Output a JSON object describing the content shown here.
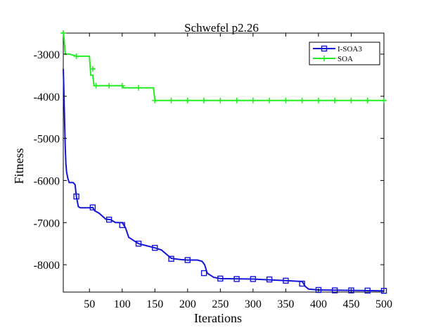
{
  "chart_data": {
    "type": "line",
    "title": "Schwefel p2.26",
    "xlabel": "Iterations",
    "ylabel": "Fitness",
    "xlim": [
      10,
      500
    ],
    "ylim": [
      -8650,
      -2500
    ],
    "xticks": [
      50,
      100,
      150,
      200,
      250,
      300,
      350,
      400,
      450,
      500
    ],
    "yticks": [
      -3000,
      -4000,
      -5000,
      -6000,
      -7000,
      -8000
    ],
    "xtick_labels": [
      "50",
      "100",
      "150",
      "200",
      "250",
      "300",
      "350",
      "400",
      "450",
      "500"
    ],
    "ytick_labels": [
      "-3000",
      "-4000",
      "-5000",
      "-6000",
      "-7000",
      "-8000"
    ],
    "grid": false,
    "legend_position": "top-right",
    "series": [
      {
        "name": "I-SOA3",
        "color": "#1515d8",
        "marker": "square",
        "x": [
          10,
          11,
          12,
          13,
          14,
          15,
          17,
          19,
          22,
          25,
          28,
          30,
          33,
          36,
          40,
          45,
          50,
          55,
          58,
          65,
          75,
          82,
          90,
          100,
          105,
          110,
          115,
          125,
          135,
          150,
          160,
          175,
          190,
          200,
          215,
          222,
          226,
          230,
          240,
          250,
          300,
          350,
          375,
          380,
          385,
          400,
          450,
          500
        ],
        "y": [
          -3350,
          -3900,
          -4600,
          -5200,
          -5600,
          -5800,
          -5950,
          -6050,
          -6050,
          -6050,
          -6100,
          -6380,
          -6620,
          -6650,
          -6650,
          -6650,
          -6650,
          -6640,
          -6720,
          -6780,
          -6920,
          -6930,
          -7000,
          -7000,
          -7120,
          -7350,
          -7400,
          -7500,
          -7540,
          -7600,
          -7650,
          -7850,
          -7880,
          -7890,
          -7890,
          -7920,
          -8000,
          -8200,
          -8300,
          -8330,
          -8340,
          -8380,
          -8400,
          -8520,
          -8580,
          -8600,
          -8610,
          -8620
        ]
      },
      {
        "name": "SOA",
        "color": "#22ee22",
        "marker": "plus",
        "x": [
          10,
          11,
          13,
          20,
          30,
          50,
          52,
          55,
          57,
          60,
          100,
          102,
          110,
          120,
          125,
          135,
          148,
          150,
          200,
          250,
          300,
          350,
          400,
          450,
          500
        ],
        "y": [
          -2500,
          -2600,
          -3000,
          -3000,
          -3050,
          -3050,
          -3500,
          -3500,
          -3750,
          -3750,
          -3750,
          -3800,
          -3800,
          -3800,
          -3800,
          -3800,
          -3800,
          -4100,
          -4100,
          -4100,
          -4100,
          -4100,
          -4100,
          -4100,
          -4100
        ],
        "marker_x": [
          10,
          30,
          55,
          60,
          80,
          100,
          125,
          150,
          175,
          200,
          225,
          250,
          275,
          300,
          325,
          350,
          375,
          400,
          425,
          450,
          475,
          500
        ],
        "marker_y": [
          -2500,
          -3050,
          -3350,
          -3750,
          -3750,
          -3750,
          -3800,
          -4100,
          -4100,
          -4100,
          -4100,
          -4100,
          -4100,
          -4100,
          -4100,
          -4100,
          -4100,
          -4100,
          -4100,
          -4100,
          -4100,
          -4100
        ]
      }
    ],
    "i_soa3_marker_x": [
      30,
      55,
      80,
      100,
      125,
      150,
      175,
      200,
      225,
      250,
      275,
      300,
      325,
      350,
      375,
      400,
      425,
      450,
      475,
      500
    ],
    "i_soa3_marker_y": [
      -6380,
      -6640,
      -6930,
      -7060,
      -7500,
      -7600,
      -7860,
      -7890,
      -8200,
      -8330,
      -8340,
      -8340,
      -8350,
      -8380,
      -8450,
      -8600,
      -8610,
      -8610,
      -8615,
      -8620
    ]
  }
}
